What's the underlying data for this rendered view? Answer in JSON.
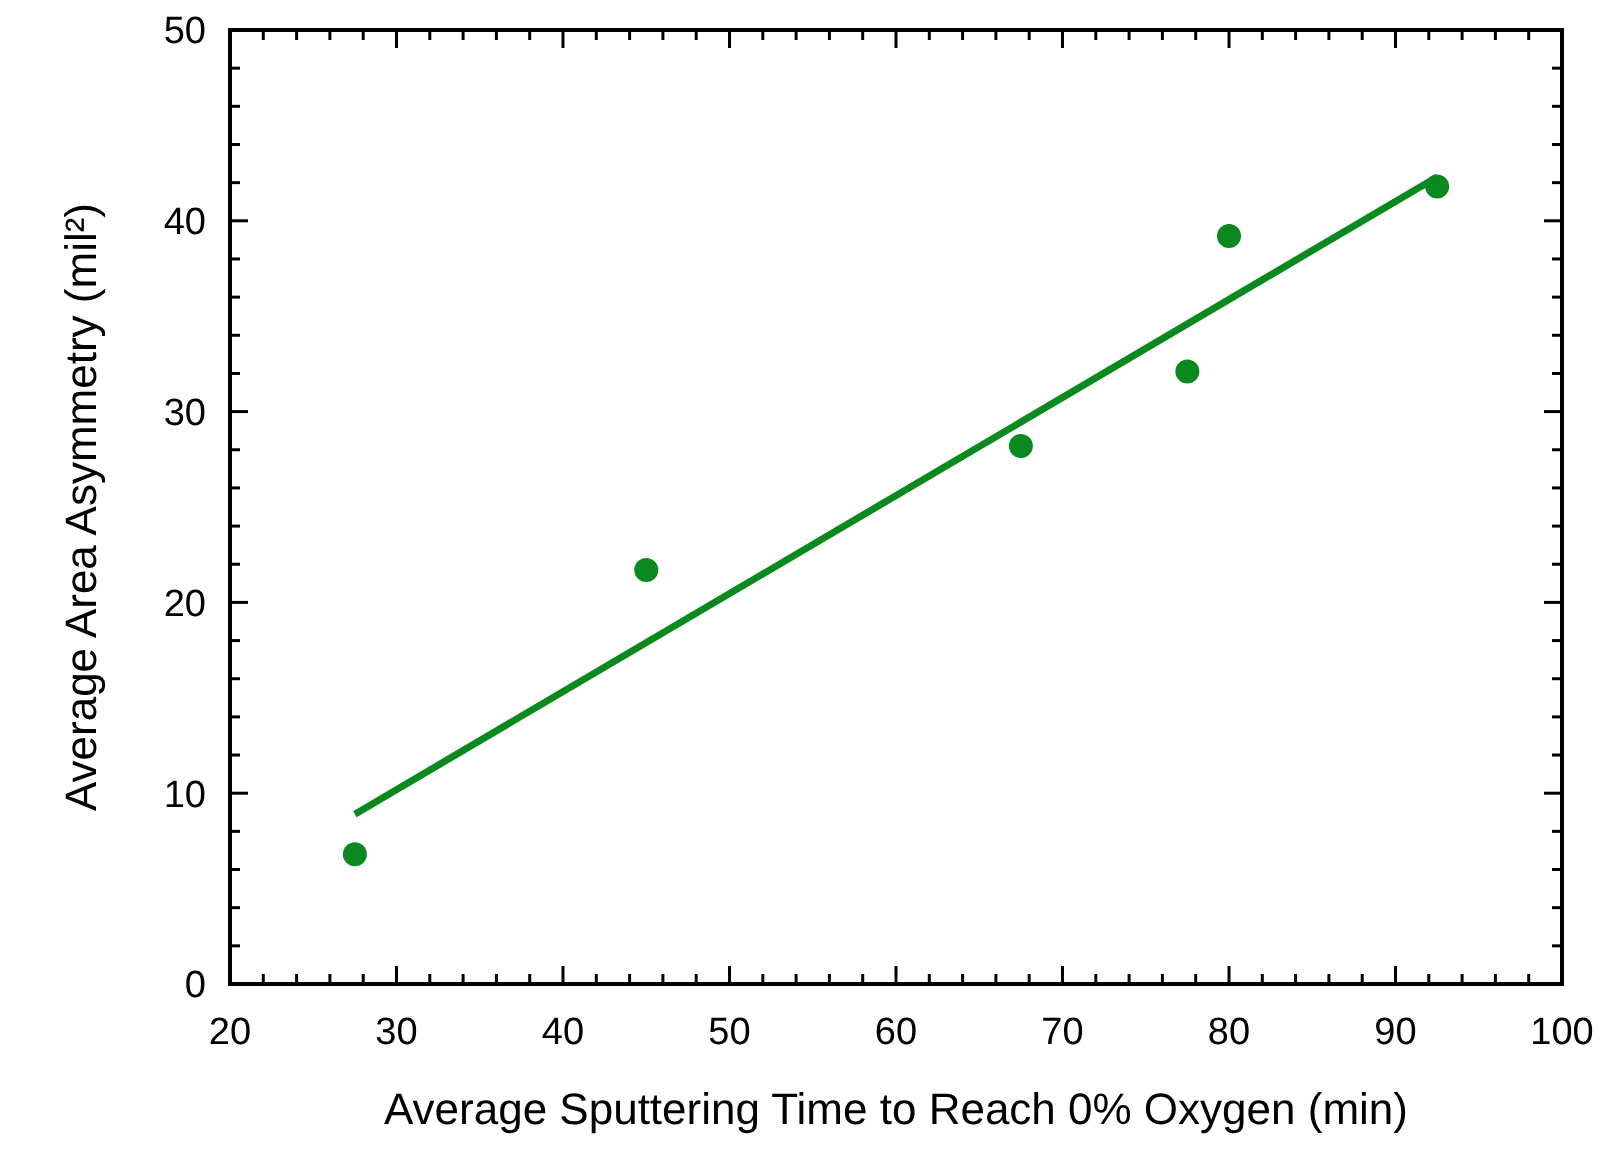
{
  "chart_data": {
    "type": "scatter",
    "xlabel": "Average Sputtering Time to Reach 0% Oxygen (min)",
    "ylabel": "Average Area Asymmetry (mil²)",
    "xlim": [
      20,
      100
    ],
    "ylim": [
      0,
      50
    ],
    "xticks": [
      20,
      {
        "value": 22,
        "label": null
      },
      {
        "value": 24,
        "label": null
      },
      {
        "value": 26,
        "label": null
      },
      {
        "value": 28,
        "label": null
      },
      30,
      {
        "value": 32,
        "label": null
      },
      {
        "value": 34,
        "label": null
      },
      {
        "value": 36,
        "label": null
      },
      {
        "value": 38,
        "label": null
      },
      40,
      {
        "value": 42,
        "label": null
      },
      {
        "value": 44,
        "label": null
      },
      {
        "value": 46,
        "label": null
      },
      {
        "value": 48,
        "label": null
      },
      50,
      {
        "value": 52,
        "label": null
      },
      {
        "value": 54,
        "label": null
      },
      {
        "value": 56,
        "label": null
      },
      {
        "value": 58,
        "label": null
      },
      60,
      {
        "value": 62,
        "label": null
      },
      {
        "value": 64,
        "label": null
      },
      {
        "value": 66,
        "label": null
      },
      {
        "value": 68,
        "label": null
      },
      70,
      {
        "value": 72,
        "label": null
      },
      {
        "value": 74,
        "label": null
      },
      {
        "value": 76,
        "label": null
      },
      {
        "value": 78,
        "label": null
      },
      80,
      {
        "value": 82,
        "label": null
      },
      {
        "value": 84,
        "label": null
      },
      {
        "value": 86,
        "label": null
      },
      {
        "value": 88,
        "label": null
      },
      90,
      {
        "value": 92,
        "label": null
      },
      {
        "value": 94,
        "label": null
      },
      {
        "value": 96,
        "label": null
      },
      {
        "value": 98,
        "label": null
      },
      100
    ],
    "yticks": [
      0,
      {
        "value": 2,
        "label": null
      },
      {
        "value": 4,
        "label": null
      },
      {
        "value": 6,
        "label": null
      },
      {
        "value": 8,
        "label": null
      },
      10,
      {
        "value": 12,
        "label": null
      },
      {
        "value": 14,
        "label": null
      },
      {
        "value": 16,
        "label": null
      },
      {
        "value": 18,
        "label": null
      },
      20,
      {
        "value": 22,
        "label": null
      },
      {
        "value": 24,
        "label": null
      },
      {
        "value": 26,
        "label": null
      },
      {
        "value": 28,
        "label": null
      },
      30,
      {
        "value": 32,
        "label": null
      },
      {
        "value": 34,
        "label": null
      },
      {
        "value": 36,
        "label": null
      },
      {
        "value": 38,
        "label": null
      },
      40,
      {
        "value": 42,
        "label": null
      },
      {
        "value": 44,
        "label": null
      },
      {
        "value": 46,
        "label": null
      },
      {
        "value": 48,
        "label": null
      },
      50
    ],
    "grid": false,
    "marker": "circle",
    "series": [
      {
        "color": "#0a8a1e",
        "x": [
          27.5,
          45,
          67.5,
          77.5,
          80,
          92.5
        ],
        "values": [
          6.8,
          21.7,
          28.2,
          32.1,
          39.2,
          41.8
        ]
      },
      {
        "type": "line",
        "color": "#0a8a1e",
        "x": [
          27.5,
          92.5
        ],
        "values": [
          8.9,
          42.3
        ],
        "marker": "none"
      }
    ]
  }
}
